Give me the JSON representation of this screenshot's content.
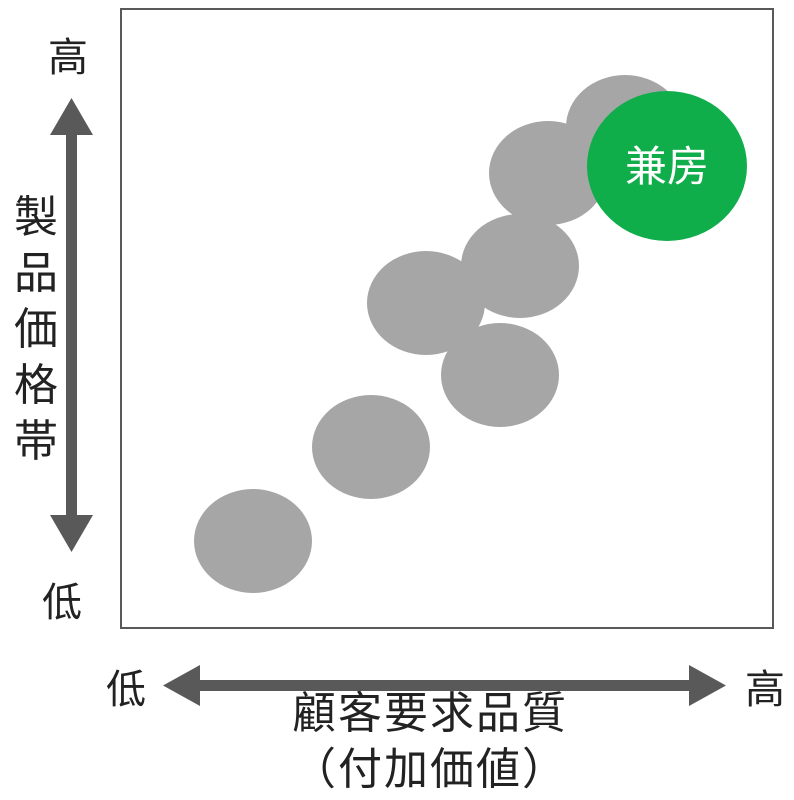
{
  "y_axis": {
    "high_label": "高",
    "low_label": "低",
    "title": "製品価格帯"
  },
  "x_axis": {
    "low_label": "低",
    "high_label": "高",
    "title": "顧客要求品質",
    "subtitle": "（付加価値）"
  },
  "highlight": {
    "label": "兼房",
    "color": "#10AD4B",
    "text_color": "#FFFFFF"
  },
  "colors": {
    "bubble": "#A6A6A6",
    "arrow": "#595959",
    "frame": "#595959"
  }
}
